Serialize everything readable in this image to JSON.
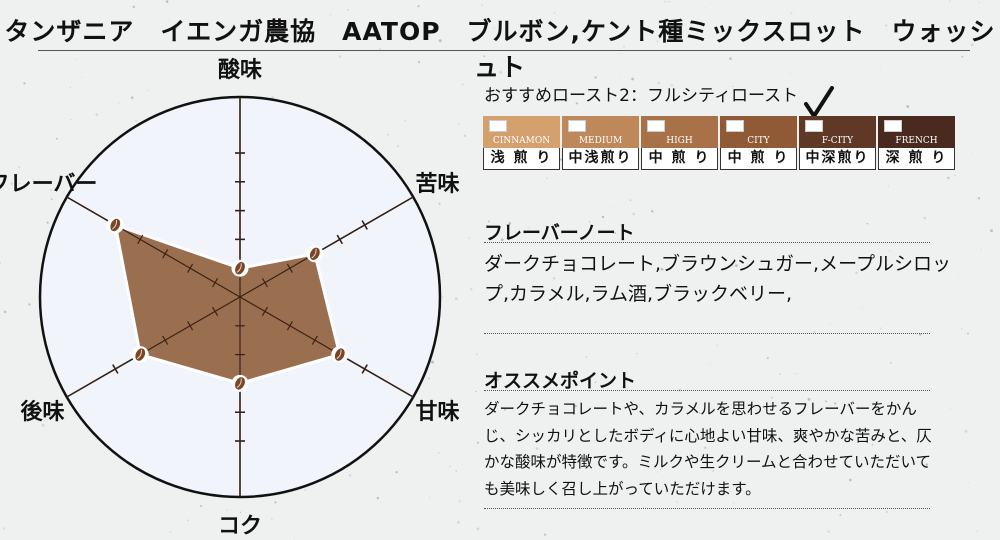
{
  "title": "タンザニア　イエンガ農協　AATOP　ブルボン,ケント種ミックスロット　ウォッシュト",
  "colors": {
    "polygon_fill": "#9a6f4f",
    "polygon_stroke": "#ffffff",
    "circle_fill": "#f2f4fb",
    "axis": "#3a2215",
    "bean": "#7a4726"
  },
  "chart_data": {
    "type": "radar",
    "axes": [
      "酸味",
      "苦味",
      "甘味",
      "コク",
      "後味",
      "フレーバー"
    ],
    "max": 5,
    "values": [
      1,
      3,
      4,
      3,
      4,
      5
    ],
    "grid": "tick-marks",
    "legend": "none"
  },
  "roast": {
    "heading": "おすすめロースト2：フルシティロースト",
    "selected_index": 4,
    "levels": [
      {
        "en": "CINNAMON",
        "jp": "浅 煎 り",
        "color": "#d4a06e"
      },
      {
        "en": "MEDIUM",
        "jp": "中浅煎り",
        "color": "#bf885a"
      },
      {
        "en": "HIGH",
        "jp": "中 煎 り",
        "color": "#a97147"
      },
      {
        "en": "CITY",
        "jp": "中 煎 り",
        "color": "#905a37"
      },
      {
        "en": "F-CITY",
        "jp": "中深煎り",
        "color": "#5f3826"
      },
      {
        "en": "FRENCH",
        "jp": "深 煎 り",
        "color": "#4a2a1e"
      }
    ]
  },
  "flavor": {
    "heading": "フレーバーノート",
    "text": "ダークチョコレート,ブラウンシュガー,メープルシロップ,カラメル,ラム酒,ブラックベリー,"
  },
  "recommend": {
    "heading": "オススメポイント",
    "text": "ダークチョコレートや、カラメルを思わせるフレーバーをかんじ、シッカリとしたボディに心地よい甘味、爽やかな苦みと、仄かな酸味が特徴です。ミルクや生クリームと合わせていただいても美味しく召し上がっていただけます。"
  }
}
